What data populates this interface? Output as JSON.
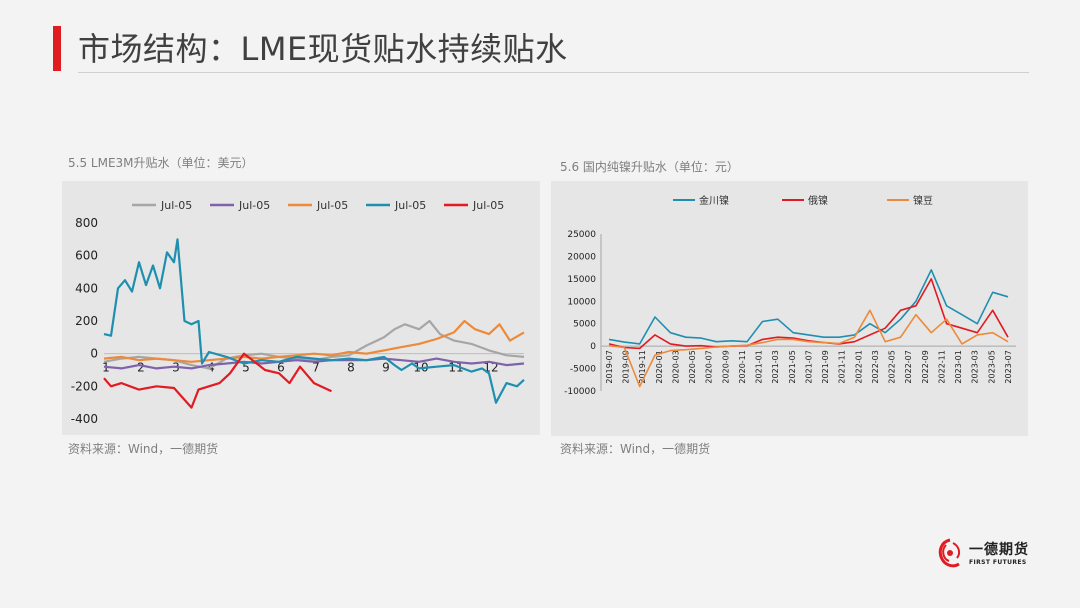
{
  "page": {
    "title": "市场结构：LME现货贴水持续贴水"
  },
  "left_chart": {
    "caption": "5.5 LME3M升贴水（单位：美元）",
    "source": "资料来源：Wind，一德期货"
  },
  "right_chart": {
    "caption": "5.6 国内纯镍升贴水（单位：元）",
    "source": "资料来源：Wind，一德期货"
  },
  "logo": {
    "name": "一德期货",
    "english": "FIRST FUTURES",
    "icon": "swirl-logo-icon"
  },
  "chart_data": [
    {
      "type": "line",
      "ylim": [
        -400,
        800
      ],
      "yticks": [
        -400,
        -200,
        0,
        200,
        400,
        600,
        800
      ],
      "xlim": [
        1,
        13
      ],
      "xticks": [
        1,
        2,
        3,
        4,
        5,
        6,
        7,
        8,
        9,
        10,
        11,
        12
      ],
      "grid": false,
      "legend_position": "top",
      "series": [
        {
          "name": "Jul-05",
          "color": "#a6a6a6",
          "points": [
            [
              1,
              -50
            ],
            [
              1.5,
              -30
            ],
            [
              2,
              -20
            ],
            [
              2.5,
              -30
            ],
            [
              3,
              -40
            ],
            [
              3.5,
              -70
            ],
            [
              4,
              -90
            ],
            [
              4.5,
              -30
            ],
            [
              5,
              -10
            ],
            [
              5.5,
              0
            ],
            [
              6,
              -20
            ],
            [
              6.5,
              -30
            ],
            [
              7,
              -40
            ],
            [
              7.5,
              -20
            ],
            [
              8,
              -10
            ],
            [
              8.5,
              50
            ],
            [
              9,
              100
            ],
            [
              9.3,
              150
            ],
            [
              9.6,
              180
            ],
            [
              10,
              150
            ],
            [
              10.3,
              200
            ],
            [
              10.6,
              120
            ],
            [
              11,
              80
            ],
            [
              11.5,
              60
            ],
            [
              12,
              20
            ],
            [
              12.5,
              -10
            ],
            [
              13,
              -20
            ]
          ]
        },
        {
          "name": "Jul-05",
          "color": "#7f62aa",
          "points": [
            [
              1,
              -80
            ],
            [
              1.5,
              -90
            ],
            [
              2,
              -70
            ],
            [
              2.5,
              -90
            ],
            [
              3,
              -80
            ],
            [
              3.5,
              -90
            ],
            [
              4,
              -70
            ],
            [
              4.5,
              -60
            ],
            [
              5,
              -50
            ],
            [
              5.5,
              -60
            ],
            [
              6,
              -50
            ],
            [
              6.5,
              -40
            ],
            [
              7,
              -50
            ],
            [
              7.5,
              -40
            ],
            [
              8,
              -40
            ],
            [
              8.5,
              -40
            ],
            [
              9,
              -30
            ],
            [
              9.5,
              -40
            ],
            [
              10,
              -50
            ],
            [
              10.5,
              -30
            ],
            [
              11,
              -50
            ],
            [
              11.5,
              -60
            ],
            [
              12,
              -50
            ],
            [
              12.5,
              -70
            ],
            [
              13,
              -60
            ]
          ]
        },
        {
          "name": "Jul-05",
          "color": "#ed8a3a",
          "points": [
            [
              1,
              -30
            ],
            [
              1.5,
              -20
            ],
            [
              2,
              -40
            ],
            [
              2.5,
              -30
            ],
            [
              3,
              -40
            ],
            [
              3.5,
              -50
            ],
            [
              4,
              -40
            ],
            [
              4.5,
              -30
            ],
            [
              5,
              -20
            ],
            [
              5.5,
              -30
            ],
            [
              6,
              -20
            ],
            [
              6.5,
              -10
            ],
            [
              7,
              0
            ],
            [
              7.5,
              -10
            ],
            [
              8,
              10
            ],
            [
              8.5,
              0
            ],
            [
              9,
              20
            ],
            [
              9.5,
              40
            ],
            [
              10,
              60
            ],
            [
              10.5,
              90
            ],
            [
              11,
              130
            ],
            [
              11.3,
              200
            ],
            [
              11.6,
              150
            ],
            [
              12,
              120
            ],
            [
              12.3,
              180
            ],
            [
              12.6,
              80
            ],
            [
              13,
              130
            ]
          ]
        },
        {
          "name": "Jul-05",
          "color": "#1f8fb0",
          "points": [
            [
              1,
              120
            ],
            [
              1.2,
              110
            ],
            [
              1.4,
              400
            ],
            [
              1.6,
              450
            ],
            [
              1.8,
              380
            ],
            [
              2,
              560
            ],
            [
              2.2,
              420
            ],
            [
              2.4,
              540
            ],
            [
              2.6,
              400
            ],
            [
              2.8,
              620
            ],
            [
              3,
              560
            ],
            [
              3.1,
              700
            ],
            [
              3.3,
              200
            ],
            [
              3.5,
              180
            ],
            [
              3.7,
              200
            ],
            [
              3.8,
              -60
            ],
            [
              4,
              10
            ],
            [
              4.5,
              -20
            ],
            [
              5,
              -60
            ],
            [
              5.5,
              -40
            ],
            [
              6,
              -50
            ],
            [
              6.5,
              -20
            ],
            [
              7,
              -30
            ],
            [
              7.5,
              -40
            ],
            [
              8,
              -30
            ],
            [
              8.5,
              -40
            ],
            [
              9,
              -20
            ],
            [
              9.3,
              -70
            ],
            [
              9.5,
              -100
            ],
            [
              9.8,
              -60
            ],
            [
              10,
              -90
            ],
            [
              10.5,
              -80
            ],
            [
              11,
              -70
            ],
            [
              11.5,
              -110
            ],
            [
              11.8,
              -90
            ],
            [
              12,
              -120
            ],
            [
              12.2,
              -300
            ],
            [
              12.5,
              -180
            ],
            [
              12.8,
              -200
            ],
            [
              13,
              -160
            ]
          ]
        },
        {
          "name": "Jul-05",
          "color": "#e11b22",
          "points": [
            [
              1,
              -150
            ],
            [
              1.2,
              -200
            ],
            [
              1.5,
              -180
            ],
            [
              2,
              -220
            ],
            [
              2.5,
              -200
            ],
            [
              3,
              -210
            ],
            [
              3.5,
              -330
            ],
            [
              3.7,
              -220
            ],
            [
              4,
              -200
            ],
            [
              4.3,
              -180
            ],
            [
              4.6,
              -120
            ],
            [
              5,
              0
            ],
            [
              5.3,
              -50
            ],
            [
              5.6,
              -100
            ],
            [
              6,
              -120
            ],
            [
              6.3,
              -180
            ],
            [
              6.6,
              -80
            ],
            [
              7,
              -180
            ],
            [
              7.5,
              -230
            ]
          ]
        }
      ]
    },
    {
      "type": "line",
      "ylim": [
        -10000,
        25000
      ],
      "yticks": [
        -10000,
        -5000,
        0,
        5000,
        10000,
        15000,
        20000,
        25000
      ],
      "xticks": [
        "2019-07",
        "2019-09",
        "2019-11",
        "2020-01",
        "2020-03",
        "2020-05",
        "2020-07",
        "2020-09",
        "2020-11",
        "2021-01",
        "2021-03",
        "2021-05",
        "2021-07",
        "2021-09",
        "2021-11",
        "2022-01",
        "2022-03",
        "2022-05",
        "2022-07",
        "2022-09",
        "2022-11",
        "2023-01",
        "2023-03",
        "2023-05",
        "2023-07"
      ],
      "grid": false,
      "legend_position": "top",
      "series": [
        {
          "name": "金川镍",
          "color": "#1f8fb0",
          "values": [
            1500,
            900,
            500,
            6500,
            3000,
            2000,
            1800,
            1000,
            1200,
            1000,
            5500,
            6000,
            3000,
            2500,
            2000,
            2000,
            2500,
            5000,
            3000,
            6000,
            10000,
            17000,
            9000,
            7000,
            5000,
            12000,
            11000
          ]
        },
        {
          "name": "俄镍",
          "color": "#e11b22",
          "values": [
            500,
            -300,
            -500,
            2500,
            500,
            0,
            100,
            -200,
            0,
            100,
            1500,
            2000,
            1800,
            1200,
            800,
            500,
            1000,
            2500,
            4000,
            8000,
            9000,
            15000,
            5000,
            4000,
            3000,
            8000,
            2000
          ]
        },
        {
          "name": "镍豆",
          "color": "#ed8a3a",
          "values": [
            100,
            -300,
            -9000,
            -2000,
            -1000,
            -800,
            -500,
            -200,
            0,
            200,
            800,
            1500,
            1500,
            1000,
            800,
            600,
            2000,
            8000,
            1000,
            2000,
            7000,
            3000,
            6000,
            500,
            2500,
            3000,
            1000
          ]
        }
      ]
    }
  ]
}
